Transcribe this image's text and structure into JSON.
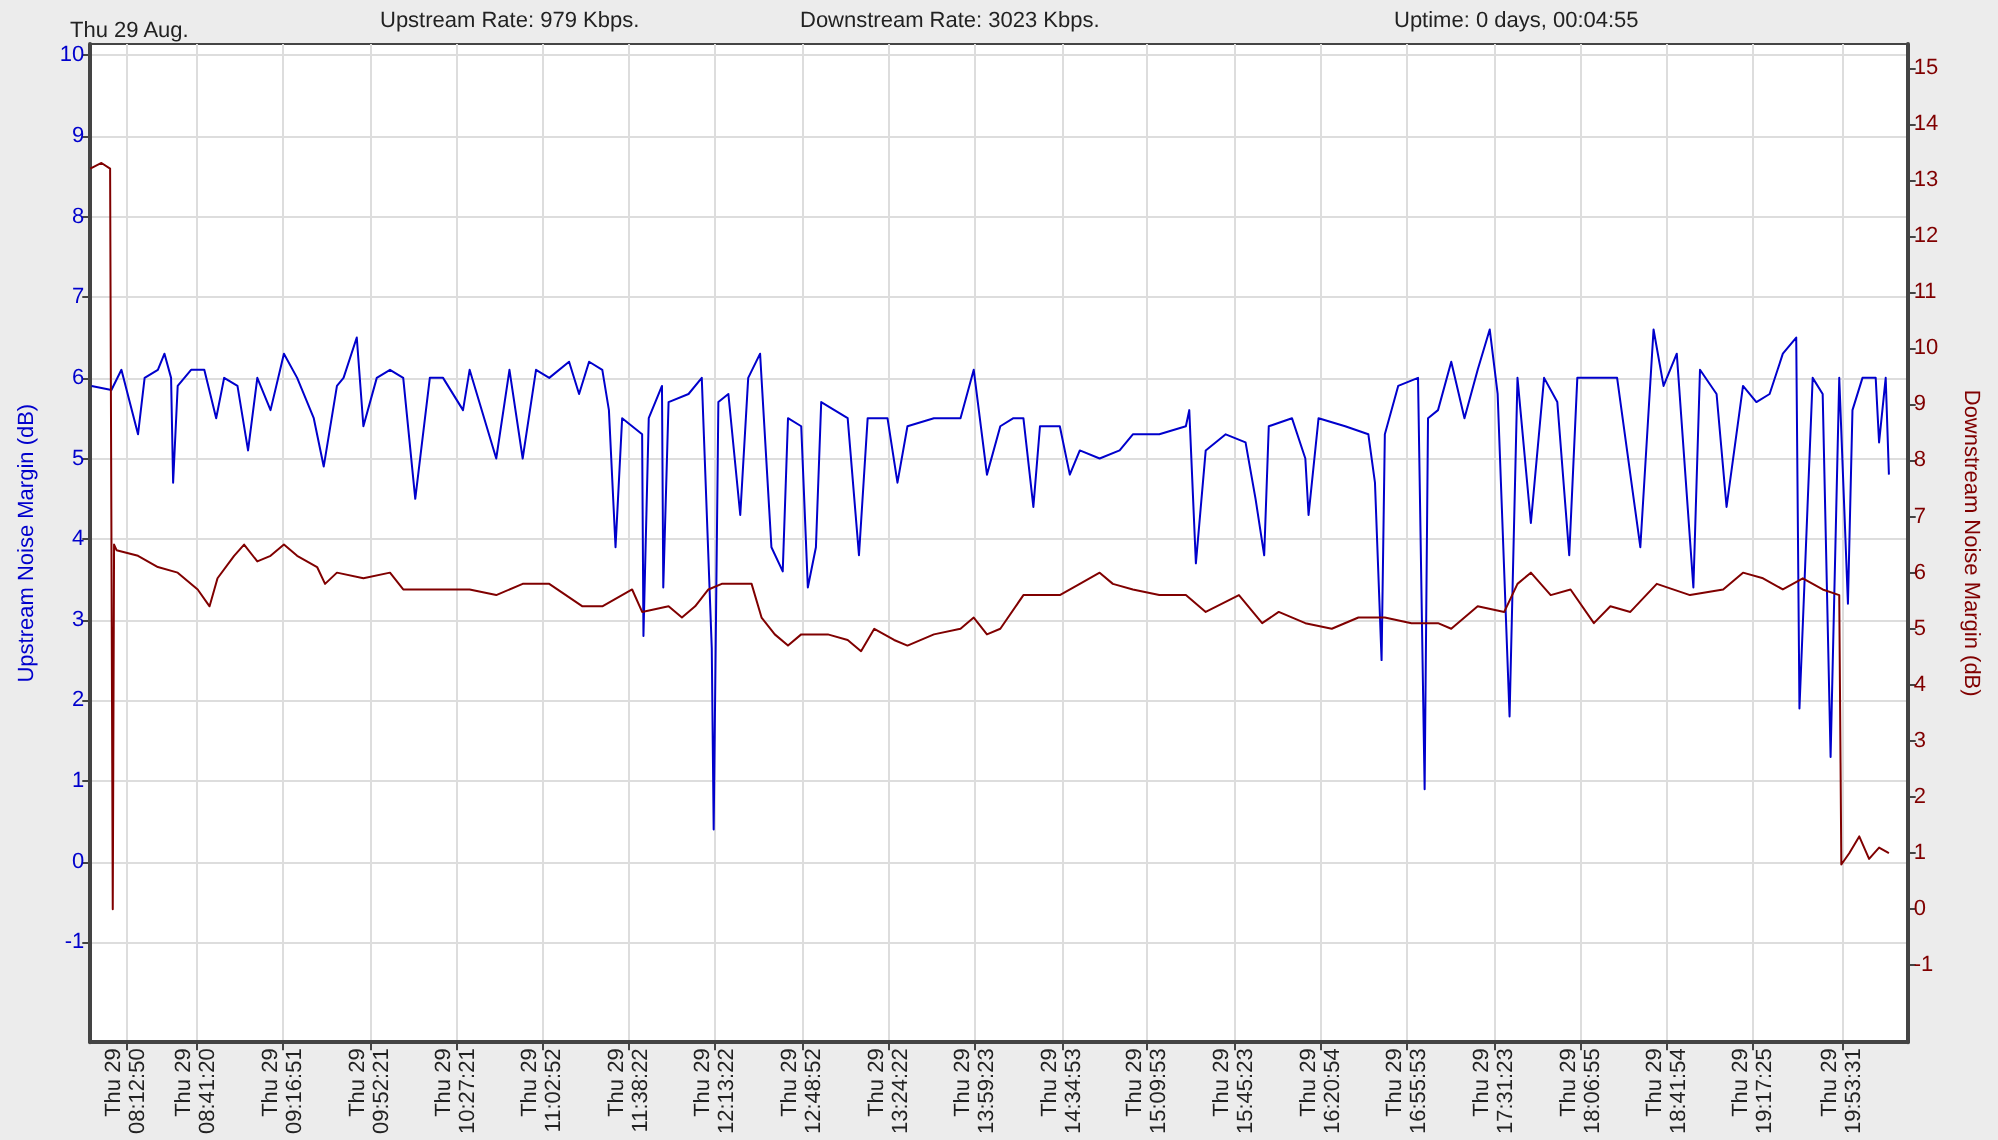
{
  "chart_data": {
    "type": "line",
    "title": "Thu 29 Aug.",
    "annotations": [
      "Upstream Rate: 979 Kbps.",
      "Downstream Rate: 3023 Kbps.",
      "Uptime: 0 days, 00:04:55"
    ],
    "ylabel": "Upstream Noise Margin (dB)",
    "y2label": "Downstream Noise Margin (dB)",
    "xlim": [
      "--08-29T07:58:12",
      "--08-29T20:20:24"
    ],
    "xticks": [
      {
        "value": "--08-29T08:12:50",
        "label": "Thu 29\n08:12:50"
      },
      {
        "value": "--08-29T08:41:20",
        "label": "Thu 29\n08:41:20"
      },
      {
        "value": "--08-29T09:16:51",
        "label": "Thu 29\n09:16:51"
      },
      {
        "value": "--08-29T09:52:21",
        "label": "Thu 29\n09:52:21"
      },
      {
        "value": "--08-29T10:27:21",
        "label": "Thu 29\n10:27:21"
      },
      {
        "value": "--08-29T11:02:52",
        "label": "Thu 29\n11:02:52"
      },
      {
        "value": "--08-29T11:38:22",
        "label": "Thu 29\n11:38:22"
      },
      {
        "value": "--08-29T12:13:22",
        "label": "Thu 29\n12:13:22"
      },
      {
        "value": "--08-29T12:48:52",
        "label": "Thu 29\n12:48:52"
      },
      {
        "value": "--08-29T13:24:22",
        "label": "Thu 29\n13:24:22"
      },
      {
        "value": "--08-29T13:59:23",
        "label": "Thu 29\n13:59:23"
      },
      {
        "value": "--08-29T14:34:53",
        "label": "Thu 29\n14:34:53"
      },
      {
        "value": "--08-29T15:09:53",
        "label": "Thu 29\n15:09:53"
      },
      {
        "value": "--08-29T15:45:23",
        "label": "Thu 29\n15:45:23"
      },
      {
        "value": "--08-29T16:20:54",
        "label": "Thu 29\n16:20:54"
      },
      {
        "value": "--08-29T16:55:53",
        "label": "Thu 29\n16:55:53"
      },
      {
        "value": "--08-29T17:31:23",
        "label": "Thu 29\n17:31:23"
      },
      {
        "value": "--08-29T18:06:55",
        "label": "Thu 29\n18:06:55"
      },
      {
        "value": "--08-29T18:41:54",
        "label": "Thu 29\n18:41:54"
      },
      {
        "value": "--08-29T19:17:25",
        "label": "Thu 29\n19:17:25"
      },
      {
        "value": "--08-29T19:53:31",
        "label": "Thu 29\n19:53:31"
      }
    ],
    "ylim": [
      -2.24,
      10.14
    ],
    "yticks": [
      -1,
      0,
      1,
      2,
      3,
      4,
      5,
      6,
      7,
      8,
      9,
      10
    ],
    "y2lim": [
      -2.37,
      15.42
    ],
    "y2ticks": [
      -1,
      0,
      1,
      2,
      3,
      4,
      5,
      6,
      7,
      8,
      9,
      10,
      11,
      12,
      13,
      14,
      15
    ],
    "grid": true,
    "marker": "none",
    "series": [
      {
        "color": "#0000cc",
        "x": [
          "--08-29T07:58:44",
          "--08-29T08:06:50",
          "--08-29T08:10:55",
          "--08-29T08:17:42",
          "--08-29T08:20:24",
          "--08-29T08:25:48",
          "--08-29T08:28:30",
          "--08-29T08:31:12",
          "--08-29T08:32:02",
          "--08-29T08:33:54",
          "--08-29T08:39:22",
          "--08-29T08:44:46",
          "--08-29T08:49:37",
          "--08-29T08:52:52",
          "--08-29T08:58:19",
          "--08-29T09:02:38",
          "--08-29T09:06:25",
          "--08-29T09:11:49",
          "--08-29T09:17:17",
          "--08-29T09:22:41",
          "--08-29T09:29:28",
          "--08-29T09:33:32",
          "--08-29T09:38:56",
          "--08-29T09:41:38",
          "--08-29T09:47:02",
          "--08-29T09:49:44",
          "--08-29T09:55:12",
          "--08-29T10:00:36",
          "--08-29T10:06:00",
          "--08-29T10:10:55",
          "--08-29T10:16:52",
          "--08-29T10:22:16",
          "--08-29T10:30:25",
          "--08-29T10:33:07",
          "--08-29T10:43:59",
          "--08-29T10:49:23",
          "--08-29T10:54:47",
          "--08-29T11:00:14",
          "--08-29T11:05:38",
          "--08-29T11:13:44",
          "--08-29T11:17:49",
          "--08-29T11:21:54",
          "--08-29T11:27:18",
          "--08-29T11:30:00",
          "--08-29T11:32:42",
          "--08-29T11:35:24",
          "--08-29T11:43:34",
          "--08-29T11:44:06",
          "--08-29T11:46:16",
          "--08-29T11:51:40",
          "--08-29T11:52:12",
          "--08-29T11:54:22",
          "--08-29T12:02:31",
          "--08-29T12:07:55",
          "--08-29T12:12:00",
          "--08-29T12:12:47",
          "--08-29T12:14:42",
          "--08-29T12:18:47",
          "--08-29T12:23:38",
          "--08-29T12:26:53",
          "--08-29T12:31:44",
          "--08-29T12:36:22",
          "--08-29T12:40:59",
          "--08-29T12:43:08",
          "--08-29T12:48:32",
          "--08-29T12:51:14",
          "--08-29T12:54:32",
          "--08-29T12:56:42",
          "--08-29T13:02:06",
          "--08-29T13:07:30",
          "--08-29T13:12:07",
          "--08-29T13:15:40",
          "--08-29T13:23:46",
          "--08-29T13:27:50",
          "--08-29T13:31:55",
          "--08-29T13:42:43",
          "--08-29T13:53:35",
          "--08-29T13:58:59",
          "--08-29T14:04:23",
          "--08-29T14:09:50",
          "--08-29T14:15:11",
          "--08-29T14:19:16",
          "--08-29T14:23:20",
          "--08-29T14:26:02",
          "--08-29T14:34:08",
          "--08-29T14:38:13",
          "--08-29T14:42:18",
          "--08-29T14:50:24",
          "--08-29T14:58:34",
          "--08-29T15:03:58",
          "--08-29T15:14:46",
          "--08-29T15:25:37",
          "--08-29T15:27:00",
          "--08-29T15:29:42",
          "--08-29T15:33:43",
          "--08-29T15:41:53",
          "--08-29T15:49:59",
          "--08-29T15:54:04",
          "--08-29T15:57:36",
          "--08-29T15:59:28",
          "--08-29T16:08:56",
          "--08-29T16:14:24",
          "--08-29T16:15:43",
          "--08-29T16:19:48",
          "--08-29T16:30:40",
          "--08-29T16:40:08",
          "--08-29T16:42:50",
          "--08-29T16:45:32",
          "--08-29T16:46:52",
          "--08-29T16:52:19",
          "--08-29T17:00:25",
          "--08-29T17:03:07",
          "--08-29T17:04:30",
          "--08-29T17:08:35",
          "--08-29T17:13:59",
          "--08-29T17:19:23",
          "--08-29T17:24:47",
          "--08-29T17:29:42",
          "--08-29T17:32:56",
          "--08-29T17:37:48",
          "--08-29T17:41:02",
          "--08-29T17:46:30",
          "--08-29T17:51:54",
          "--08-29T17:57:18",
          "--08-29T18:02:10",
          "--08-29T18:05:28",
          "--08-29T18:13:34",
          "--08-29T18:21:43",
          "--08-29T18:31:12",
          "--08-29T18:36:36",
          "--08-29T18:40:41",
          "--08-29T18:46:05",
          "--08-29T18:52:52",
          "--08-29T18:55:34",
          "--08-29T19:02:20",
          "--08-29T19:06:25",
          "--08-29T19:13:08",
          "--08-29T19:18:36",
          "--08-29T19:24:00",
          "--08-29T19:29:24",
          "--08-29T19:34:52",
          "--08-29T19:36:11",
          "--08-29T19:41:35",
          "--08-29T19:45:40",
          "--08-29T19:48:54",
          "--08-29T19:52:26",
          "--08-29T19:55:59",
          "--08-29T19:57:50",
          "--08-29T20:01:55",
          "--08-29T20:07:19",
          "--08-29T20:08:42",
          "--08-29T20:11:24",
          "--08-29T20:12:43"
        ],
        "values": [
          5.9,
          5.85,
          6.1,
          5.3,
          6.0,
          6.1,
          6.3,
          6.0,
          4.7,
          5.9,
          6.1,
          6.1,
          5.5,
          6.0,
          5.9,
          5.1,
          6.0,
          5.6,
          6.3,
          6.0,
          5.5,
          4.9,
          5.9,
          6.0,
          6.5,
          5.4,
          6.0,
          6.1,
          6.0,
          4.5,
          6.0,
          6.0,
          5.6,
          6.1,
          5.0,
          6.1,
          5.0,
          6.1,
          6.0,
          6.2,
          5.8,
          6.2,
          6.1,
          5.6,
          3.9,
          5.5,
          5.3,
          2.8,
          5.5,
          5.9,
          3.4,
          5.7,
          5.8,
          6.0,
          2.65,
          0.4,
          5.7,
          5.8,
          4.3,
          6.0,
          6.3,
          3.9,
          3.6,
          5.5,
          5.4,
          3.4,
          3.9,
          5.7,
          5.6,
          5.5,
          3.8,
          5.5,
          5.5,
          4.7,
          5.4,
          5.5,
          5.5,
          6.1,
          4.8,
          5.4,
          5.5,
          5.5,
          4.4,
          5.4,
          5.4,
          4.8,
          5.1,
          5.0,
          5.1,
          5.3,
          5.3,
          5.4,
          5.6,
          3.7,
          5.1,
          5.3,
          5.2,
          4.5,
          3.8,
          5.4,
          5.5,
          5.0,
          4.3,
          5.5,
          5.4,
          5.3,
          4.7,
          2.5,
          5.3,
          5.9,
          6.0,
          0.9,
          5.5,
          5.6,
          6.2,
          5.5,
          6.1,
          6.6,
          5.8,
          1.8,
          6.0,
          4.2,
          6.0,
          5.7,
          3.8,
          6.0,
          6.0,
          6.0,
          3.9,
          6.6,
          5.9,
          6.3,
          3.4,
          6.1,
          5.8,
          4.4,
          5.9,
          5.7,
          5.8,
          6.3,
          6.5,
          1.9,
          6.0,
          5.8,
          1.3,
          6.0,
          3.2,
          5.6,
          6.0,
          6.0,
          5.2,
          6.0,
          4.8
        ]
      },
      {
        "color": "#800000",
        "axis": "y2",
        "x": [
          "--08-29T07:58:12",
          "--08-29T08:02:46",
          "--08-29T08:06:18",
          "--08-29T08:07:23",
          "--08-29T08:07:55",
          "--08-29T08:08:56",
          "--08-29T08:17:42",
          "--08-29T08:25:48",
          "--08-29T08:33:54",
          "--08-29T08:42:04",
          "--08-29T08:46:55",
          "--08-29T08:50:10",
          "--08-29T08:56:56",
          "--08-29T09:01:01",
          "--08-29T09:06:25",
          "--08-29T09:11:49",
          "--08-29T09:17:17",
          "--08-29T09:22:41",
          "--08-29T09:30:50",
          "--08-29T09:34:05",
          "--08-29T09:38:56",
          "--08-29T09:49:44",
          "--08-29T10:00:36",
          "--08-29T10:06:00",
          "--08-29T10:19:34",
          "--08-29T10:33:07",
          "--08-29T10:43:59",
          "--08-29T10:54:47",
          "--08-29T11:05:38",
          "--08-29T11:12:25",
          "--08-29T11:19:12",
          "--08-29T11:27:18",
          "--08-29T11:39:29",
          "--08-29T11:43:34",
          "--08-29T11:54:22",
          "--08-29T11:59:49",
          "--08-29T12:05:13",
          "--08-29T12:10:37",
          "--08-29T12:16:05",
          "--08-29T12:21:29",
          "--08-29T12:28:16",
          "--08-29T12:32:20",
          "--08-29T12:37:44",
          "--08-29T12:43:08",
          "--08-29T12:48:32",
          "--08-29T12:59:24",
          "--08-29T13:07:30",
          "--08-29T13:12:58",
          "--08-29T13:18:22",
          "--08-29T13:26:28",
          "--08-29T13:31:55",
          "--08-29T13:42:43",
          "--08-29T13:53:35",
          "--08-29T13:58:59",
          "--08-29T14:04:23",
          "--08-29T14:09:50",
          "--08-29T14:19:16",
          "--08-29T14:34:08",
          "--08-29T14:42:18",
          "--08-29T14:50:24",
          "--08-29T14:55:48",
          "--08-29T15:03:58",
          "--08-29T15:14:46",
          "--08-29T15:25:37",
          "--08-29T15:33:43",
          "--08-29T15:47:17",
          "--08-29T15:56:46",
          "--08-29T16:03:32",
          "--08-29T16:14:24",
          "--08-29T16:25:12",
          "--08-29T16:36:04",
          "--08-29T16:46:52",
          "--08-29T16:57:43",
          "--08-29T17:08:35",
          "--08-29T17:13:59",
          "--08-29T17:24:47",
          "--08-29T17:35:38",
          "--08-29T17:41:02",
          "--08-29T17:46:30",
          "--08-29T17:54:36",
          "--08-29T18:02:42",
          "--08-29T18:12:14",
          "--08-29T18:18:58",
          "--08-29T18:27:07",
          "--08-29T18:37:55",
          "--08-29T18:51:29",
          "--08-29T19:05:02",
          "--08-29T19:13:08",
          "--08-29T19:21:18",
          "--08-29T19:29:24",
          "--08-29T19:37:34",
          "--08-29T19:45:40",
          "--08-29T19:52:26",
          "--08-29T19:53:17",
          "--08-29T19:56:31",
          "--08-29T20:00:36",
          "--08-29T20:04:37",
          "--08-29T20:08:42",
          "--08-29T20:12:43"
        ],
        "values": [
          13.2,
          13.3,
          13.2,
          0.0,
          6.5,
          6.4,
          6.3,
          6.1,
          6.0,
          5.7,
          5.4,
          5.9,
          6.3,
          6.5,
          6.2,
          6.3,
          6.5,
          6.3,
          6.1,
          5.8,
          6.0,
          5.9,
          6.0,
          5.7,
          5.7,
          5.7,
          5.6,
          5.8,
          5.8,
          5.6,
          5.4,
          5.4,
          5.7,
          5.3,
          5.4,
          5.2,
          5.4,
          5.7,
          5.8,
          5.8,
          5.8,
          5.2,
          4.9,
          4.7,
          4.9,
          4.9,
          4.8,
          4.6,
          5.0,
          4.8,
          4.7,
          4.9,
          5.0,
          5.2,
          4.9,
          5.0,
          5.6,
          5.6,
          5.8,
          6.0,
          5.8,
          5.7,
          5.6,
          5.6,
          5.3,
          5.6,
          5.1,
          5.3,
          5.1,
          5.0,
          5.2,
          5.2,
          5.1,
          5.1,
          5.0,
          5.4,
          5.3,
          5.8,
          6.0,
          5.6,
          5.7,
          5.1,
          5.4,
          5.3,
          5.8,
          5.6,
          5.7,
          6.0,
          5.9,
          5.7,
          5.9,
          5.7,
          5.6,
          0.8,
          1.0,
          1.3,
          0.9,
          1.1,
          1.0
        ]
      }
    ]
  }
}
